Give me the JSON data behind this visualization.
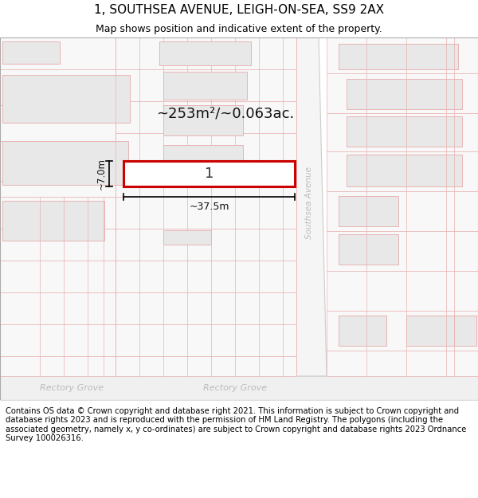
{
  "title_line1": "1, SOUTHSEA AVENUE, LEIGH-ON-SEA, SS9 2AX",
  "title_line2": "Map shows position and indicative extent of the property.",
  "footer_text": "Contains OS data © Crown copyright and database right 2021. This information is subject to Crown copyright and database rights 2023 and is reproduced with the permission of HM Land Registry. The polygons (including the associated geometry, namely x, y co-ordinates) are subject to Crown copyright and database rights 2023 Ordnance Survey 100026316.",
  "area_label": "~253m²/~0.063ac.",
  "width_label": "~37.5m",
  "height_label": "~7.0m",
  "plot_number": "1",
  "road_label_bottom_left": "Rectory Grove",
  "road_label_bottom_right": "Rectory Grove",
  "road_label_right": "Southsea Avenue",
  "bg_color": "#ffffff",
  "lc": "#e8b4b4",
  "building_fill": "#e8e8e8",
  "highlight_fill": "#ffffff",
  "highlight_edge": "#cc0000",
  "road_text_color": "#bbbbbb",
  "title_fontsize": 11,
  "subtitle_fontsize": 9,
  "footer_fontsize": 7.2
}
